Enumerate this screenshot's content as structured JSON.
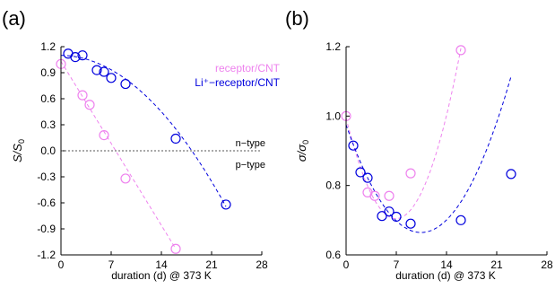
{
  "figure": {
    "panels": [
      "(a)",
      "(b)"
    ]
  },
  "chart_data": [
    {
      "type": "scatter",
      "panel_label": "(a)",
      "xlabel": "duration (d) @ 373 K",
      "ylabel_main": "S/S",
      "ylabel_sub": "0",
      "xlim": [
        0,
        28
      ],
      "ylim": [
        -1.2,
        1.2
      ],
      "xticks": [
        0,
        7,
        14,
        21,
        28
      ],
      "yticks": [
        -1.2,
        -0.9,
        -0.6,
        -0.3,
        0.0,
        0.3,
        0.6,
        0.9,
        1.2
      ],
      "ytick_labels": [
        "-1.2",
        "-0.9",
        "-0.6",
        "-0.3",
        "0.0",
        "0.3",
        "0.6",
        "0.9",
        "1.2"
      ],
      "grid": false,
      "legend_position": "top-right",
      "reference_line": {
        "y": 0,
        "style": "dotted"
      },
      "annotations": [
        "n−type",
        "p−type"
      ],
      "series": [
        {
          "name": "receptor/CNT",
          "color": "#ee82ee",
          "marker": "open-circle",
          "x": [
            0,
            3,
            4,
            6,
            9,
            16
          ],
          "y": [
            1.0,
            0.64,
            0.53,
            0.18,
            -0.32,
            -1.13
          ],
          "fit": {
            "type": "linear",
            "x": [
              0,
              16
            ],
            "y": [
              1.03,
              -1.13
            ]
          }
        },
        {
          "name": "Li⁺−receptor/CNT",
          "color": "#0000dd",
          "marker": "open-circle",
          "x": [
            1,
            2,
            3,
            5,
            6,
            7,
            9,
            16,
            23
          ],
          "y": [
            1.12,
            1.08,
            1.1,
            0.93,
            0.91,
            0.84,
            0.77,
            0.14,
            -0.62
          ],
          "fit": {
            "type": "quadratic",
            "x0": 0,
            "x1": 23,
            "coeffs": [
              1.1,
              -0.001,
              -0.00325
            ]
          }
        }
      ]
    },
    {
      "type": "scatter",
      "panel_label": "(b)",
      "xlabel": "duration (d) @ 373 K",
      "ylabel_main": "σ/σ",
      "ylabel_sub": "0",
      "xlim": [
        0,
        28
      ],
      "ylim": [
        0.6,
        1.2
      ],
      "xticks": [
        0,
        7,
        14,
        21,
        28
      ],
      "yticks": [
        0.6,
        0.8,
        1.0,
        1.2
      ],
      "ytick_labels": [
        "0.6",
        "0.8",
        "1.0",
        "1.2"
      ],
      "grid": false,
      "series": [
        {
          "name": "receptor/CNT",
          "color": "#ee82ee",
          "marker": "open-circle",
          "x": [
            0,
            3,
            4,
            6,
            9,
            16
          ],
          "y": [
            1.0,
            0.78,
            0.77,
            0.77,
            0.835,
            1.19
          ],
          "fit": {
            "type": "quadratic",
            "x0": 0,
            "x1": 16,
            "coeffs": [
              0.995,
              -0.0835,
              0.006
            ]
          }
        },
        {
          "name": "Li⁺−receptor/CNT",
          "color": "#0000dd",
          "marker": "open-circle",
          "x": [
            1,
            2,
            3,
            5,
            6,
            7,
            9,
            16,
            23
          ],
          "y": [
            0.915,
            0.838,
            0.822,
            0.712,
            0.725,
            0.71,
            0.69,
            0.7,
            0.833
          ],
          "fit": {
            "type": "quadratic",
            "x0": 0,
            "x1": 23,
            "coeffs": [
              0.975,
              -0.0595,
              0.00285
            ]
          }
        }
      ]
    }
  ]
}
